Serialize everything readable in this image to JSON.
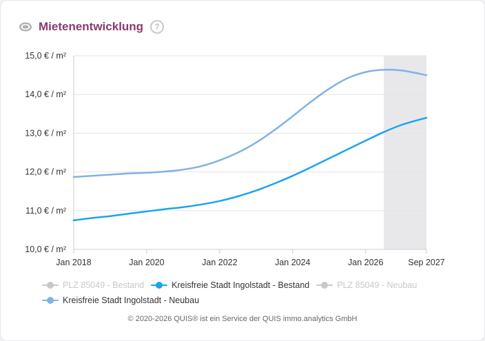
{
  "header": {
    "title": "Mietenentwicklung",
    "help_glyph": "?"
  },
  "colors": {
    "title": "#8b3a6d",
    "series_bestand": "#1aa3f0",
    "series_neubau": "#7fb2e5",
    "series_hidden": "#c8c8cc",
    "forecast_band": "#e8e8ea",
    "grid": "#e3e3e3",
    "axis": "#cccccc"
  },
  "chart_data": {
    "type": "line",
    "title": "Mietenentwicklung",
    "x_ticks": [
      "Jan 2018",
      "Jan 2020",
      "Jan 2022",
      "Jan 2024",
      "Jan 2026",
      "Sep 2027"
    ],
    "y_ticks": [
      "10,0 € / m²",
      "11,0 € / m²",
      "12,0 € / m²",
      "13,0 € / m²",
      "14,0 € / m²",
      "15,0 € / m²"
    ],
    "ylim": [
      10,
      15
    ],
    "xlim": [
      "2018-01",
      "2027-09"
    ],
    "forecast_range": [
      "2026-07",
      "2027-09"
    ],
    "grid": "horizontal",
    "legend_position": "bottom",
    "series": [
      {
        "name": "PLZ 85049 - Bestand",
        "visible": false,
        "color": "#c8c8cc",
        "points": []
      },
      {
        "name": "Kreisfreie Stadt Ingolstadt - Bestand",
        "visible": true,
        "color": "#1aa3f0",
        "points": [
          {
            "x": "2018-01",
            "y": 10.75
          },
          {
            "x": "2018-07",
            "y": 10.81
          },
          {
            "x": "2019-01",
            "y": 10.86
          },
          {
            "x": "2019-07",
            "y": 10.92
          },
          {
            "x": "2020-01",
            "y": 10.98
          },
          {
            "x": "2020-07",
            "y": 11.04
          },
          {
            "x": "2021-01",
            "y": 11.09
          },
          {
            "x": "2021-07",
            "y": 11.16
          },
          {
            "x": "2022-01",
            "y": 11.25
          },
          {
            "x": "2022-07",
            "y": 11.37
          },
          {
            "x": "2023-01",
            "y": 11.52
          },
          {
            "x": "2023-07",
            "y": 11.7
          },
          {
            "x": "2024-01",
            "y": 11.9
          },
          {
            "x": "2024-07",
            "y": 12.12
          },
          {
            "x": "2025-01",
            "y": 12.35
          },
          {
            "x": "2025-07",
            "y": 12.58
          },
          {
            "x": "2026-01",
            "y": 12.81
          },
          {
            "x": "2026-07",
            "y": 13.03
          },
          {
            "x": "2027-01",
            "y": 13.22
          },
          {
            "x": "2027-09",
            "y": 13.4
          }
        ]
      },
      {
        "name": "PLZ 85049 - Neubau",
        "visible": false,
        "color": "#c8c8cc",
        "points": []
      },
      {
        "name": "Kreisfreie Stadt Ingolstadt - Neubau",
        "visible": true,
        "color": "#7fb2e5",
        "points": [
          {
            "x": "2018-01",
            "y": 11.87
          },
          {
            "x": "2018-07",
            "y": 11.9
          },
          {
            "x": "2019-01",
            "y": 11.93
          },
          {
            "x": "2019-07",
            "y": 11.96
          },
          {
            "x": "2020-01",
            "y": 11.98
          },
          {
            "x": "2020-07",
            "y": 12.01
          },
          {
            "x": "2021-01",
            "y": 12.06
          },
          {
            "x": "2021-07",
            "y": 12.15
          },
          {
            "x": "2022-01",
            "y": 12.3
          },
          {
            "x": "2022-07",
            "y": 12.5
          },
          {
            "x": "2023-01",
            "y": 12.76
          },
          {
            "x": "2023-07",
            "y": 13.08
          },
          {
            "x": "2024-01",
            "y": 13.44
          },
          {
            "x": "2024-07",
            "y": 13.81
          },
          {
            "x": "2025-01",
            "y": 14.15
          },
          {
            "x": "2025-07",
            "y": 14.42
          },
          {
            "x": "2026-01",
            "y": 14.58
          },
          {
            "x": "2026-07",
            "y": 14.64
          },
          {
            "x": "2027-01",
            "y": 14.62
          },
          {
            "x": "2027-09",
            "y": 14.5
          }
        ]
      }
    ]
  },
  "legend": [
    {
      "label": "PLZ 85049 - Bestand",
      "state": "off",
      "color": "#c8c8cc"
    },
    {
      "label": "Kreisfreie Stadt Ingolstadt - Bestand",
      "state": "on",
      "color": "#1aa3f0"
    },
    {
      "label": "PLZ 85049 - Neubau",
      "state": "off",
      "color": "#c8c8cc"
    },
    {
      "label": "Kreisfreie Stadt Ingolstadt - Neubau",
      "state": "on",
      "color": "#7fb2e5"
    }
  ],
  "footer": {
    "text": "© 2020-2026 QUIS® ist ein Service der QUIS immo.analytics GmbH"
  }
}
